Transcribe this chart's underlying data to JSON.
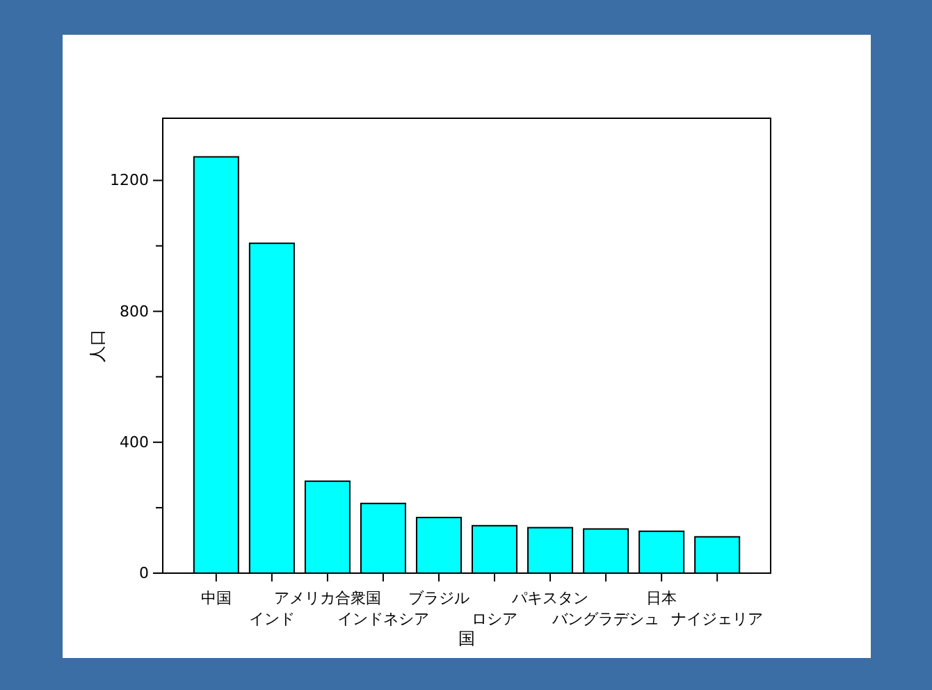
{
  "chart_data": {
    "type": "bar",
    "xlabel": "国",
    "ylabel": "人口",
    "categories": [
      "中国",
      "インド",
      "アメリカ合衆国",
      "インドネシア",
      "ブラジル",
      "ロシア",
      "パキスタン",
      "バングラデシュ",
      "日本",
      "ナイジェリア"
    ],
    "values": [
      1272,
      1008,
      281,
      213,
      170,
      145,
      139,
      135,
      128,
      111
    ],
    "color": "#00ffff",
    "ylim": [
      0,
      1390
    ],
    "yticks": [
      0,
      {
        "value": 200,
        "label": null
      },
      400,
      {
        "value": 600,
        "label": null
      },
      800,
      {
        "value": 1000,
        "label": null
      },
      1200
    ]
  }
}
